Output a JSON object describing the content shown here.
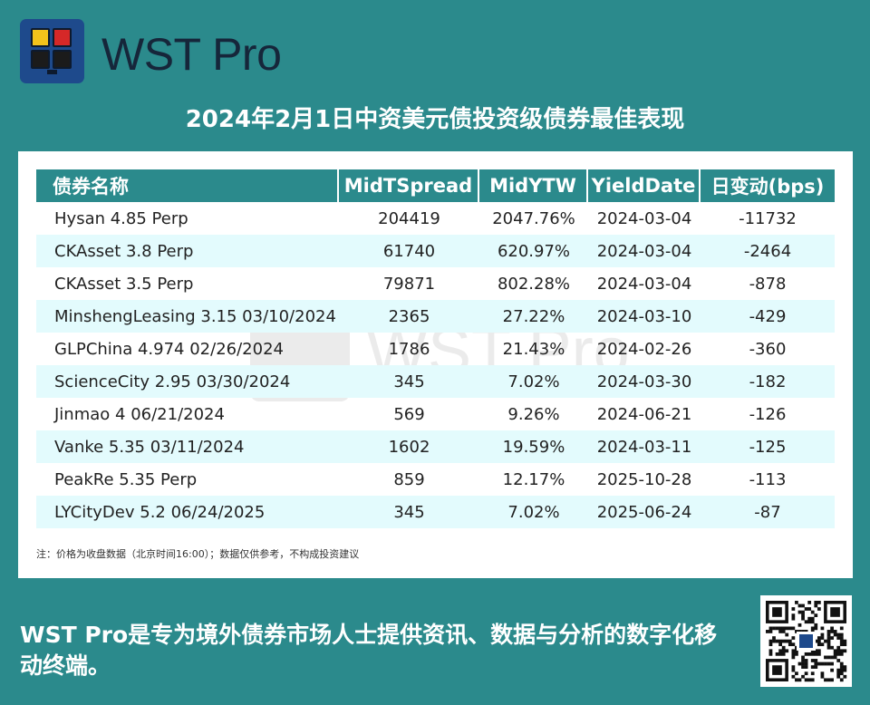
{
  "brand": {
    "name": "WST Pro"
  },
  "headline": "2024年2月1日中资美元债投资级债券最佳表现",
  "watermark": "WST Pro",
  "table": {
    "headers": [
      "债券名称",
      "MidTSpread",
      "MidYTW",
      "YieldDate",
      "日变动(bps)"
    ],
    "rows": [
      [
        "Hysan 4.85 Perp",
        "204419",
        "2047.76%",
        "2024-03-04",
        "-11732"
      ],
      [
        "CKAsset 3.8 Perp",
        "61740",
        "620.97%",
        "2024-03-04",
        "-2464"
      ],
      [
        "CKAsset 3.5 Perp",
        "79871",
        "802.28%",
        "2024-03-04",
        "-878"
      ],
      [
        "MinshengLeasing 3.15 03/10/2024",
        "2365",
        "27.22%",
        "2024-03-10",
        "-429"
      ],
      [
        "GLPChina 4.974 02/26/2024",
        "1786",
        "21.43%",
        "2024-02-26",
        "-360"
      ],
      [
        "ScienceCity 2.95 03/30/2024",
        "345",
        "7.02%",
        "2024-03-30",
        "-182"
      ],
      [
        "Jinmao 4 06/21/2024",
        "569",
        "9.26%",
        "2024-06-21",
        "-126"
      ],
      [
        "Vanke 5.35 03/11/2024",
        "1602",
        "19.59%",
        "2024-03-11",
        "-125"
      ],
      [
        "PeakRe 5.35 Perp",
        "859",
        "12.17%",
        "2025-10-28",
        "-113"
      ],
      [
        "LYCityDev 5.2 06/24/2025",
        "345",
        "7.02%",
        "2025-06-24",
        "-87"
      ]
    ]
  },
  "note": "注：价格为收盘数据（北京时间16:00）；数据仅供参考，不构成投资建议",
  "tagline": "WST Pro是专为境外债券市场人士提供资讯、数据与分析的数字化移动终端。",
  "colors": {
    "teal": "#2b8a8c",
    "row_alt": "#e3fbfd",
    "logo_blue": "#1e4a8c"
  },
  "icons": {
    "logo": "wst-pro-logo-icon",
    "qr": "qr-code"
  }
}
